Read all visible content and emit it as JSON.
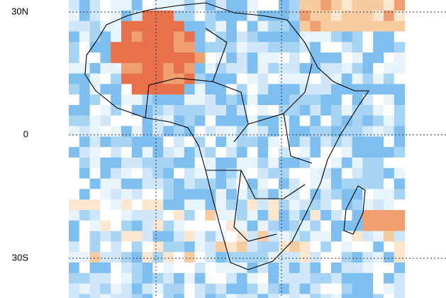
{
  "map": {
    "lat_labels": [
      "30N",
      "0",
      "30S"
    ]
  }
}
